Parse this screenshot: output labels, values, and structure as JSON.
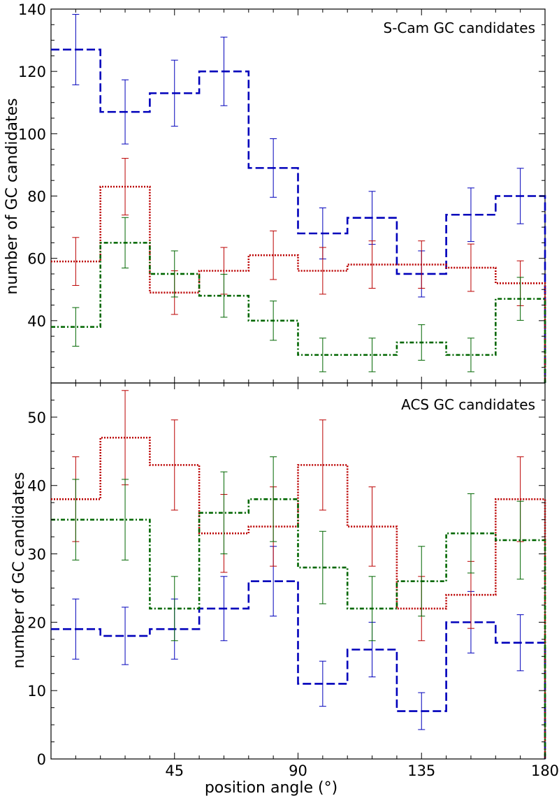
{
  "chart_data": [
    {
      "type": "step",
      "title": "S-Cam GC candidates",
      "xlabel": "position angle (°)",
      "ylabel": "number of GC candidates",
      "xlim": [
        0,
        180
      ],
      "ylim": [
        20,
        140
      ],
      "xticks": [
        45,
        90,
        135,
        180
      ],
      "yticks": [
        40,
        60,
        80,
        100,
        120,
        140
      ],
      "bin_edges": [
        0,
        18,
        36,
        54,
        72,
        90,
        108,
        126,
        144,
        162,
        180
      ],
      "series": [
        {
          "name": "blue",
          "color": "#0000bb",
          "style": "dashed",
          "values": [
            127,
            107,
            113,
            120,
            89,
            68,
            73,
            55,
            74,
            80
          ],
          "errors": [
            11.3,
            10.3,
            10.6,
            11.0,
            9.4,
            8.2,
            8.5,
            7.4,
            8.6,
            8.9
          ]
        },
        {
          "name": "red",
          "color": "#bb0000",
          "style": "dotted",
          "values": [
            59,
            83,
            49,
            56,
            61,
            56,
            58,
            58,
            57,
            52
          ],
          "errors": [
            7.7,
            9.1,
            7.0,
            7.5,
            7.8,
            7.5,
            7.6,
            7.6,
            7.6,
            7.2
          ]
        },
        {
          "name": "green",
          "color": "#006600",
          "style": "dashdot",
          "values": [
            38,
            65,
            55,
            48,
            40,
            29,
            29,
            33,
            29,
            47
          ],
          "errors": [
            6.2,
            8.1,
            7.4,
            6.9,
            6.3,
            5.4,
            5.4,
            5.7,
            5.4,
            6.9
          ]
        }
      ]
    },
    {
      "type": "step",
      "title": "ACS GC candidates",
      "xlabel": "position angle (°)",
      "ylabel": "number of GC candidates",
      "xlim": [
        0,
        180
      ],
      "ylim": [
        0,
        55
      ],
      "xticks": [
        45,
        90,
        135,
        180
      ],
      "yticks": [
        0,
        10,
        20,
        30,
        40,
        50
      ],
      "bin_edges": [
        0,
        18,
        36,
        54,
        72,
        90,
        108,
        126,
        144,
        162,
        180
      ],
      "series": [
        {
          "name": "blue",
          "color": "#0000bb",
          "style": "dashed",
          "values": [
            19,
            18,
            19,
            22,
            26,
            11,
            16,
            7,
            20,
            17
          ],
          "errors": [
            4.4,
            4.2,
            4.4,
            4.7,
            5.1,
            3.3,
            4.0,
            2.7,
            4.5,
            4.1
          ]
        },
        {
          "name": "red",
          "color": "#bb0000",
          "style": "dotted",
          "values": [
            38,
            47,
            43,
            33,
            34,
            43,
            34,
            22,
            24,
            38
          ],
          "errors": [
            6.2,
            6.9,
            6.6,
            5.7,
            5.8,
            6.6,
            5.8,
            4.7,
            4.9,
            6.2
          ]
        },
        {
          "name": "green",
          "color": "#006600",
          "style": "dashdot",
          "values": [
            35,
            35,
            22,
            36,
            38,
            28,
            22,
            26,
            33,
            32
          ],
          "errors": [
            5.9,
            5.9,
            4.7,
            6.0,
            6.2,
            5.3,
            4.7,
            5.1,
            5.8,
            5.7
          ]
        }
      ]
    }
  ]
}
